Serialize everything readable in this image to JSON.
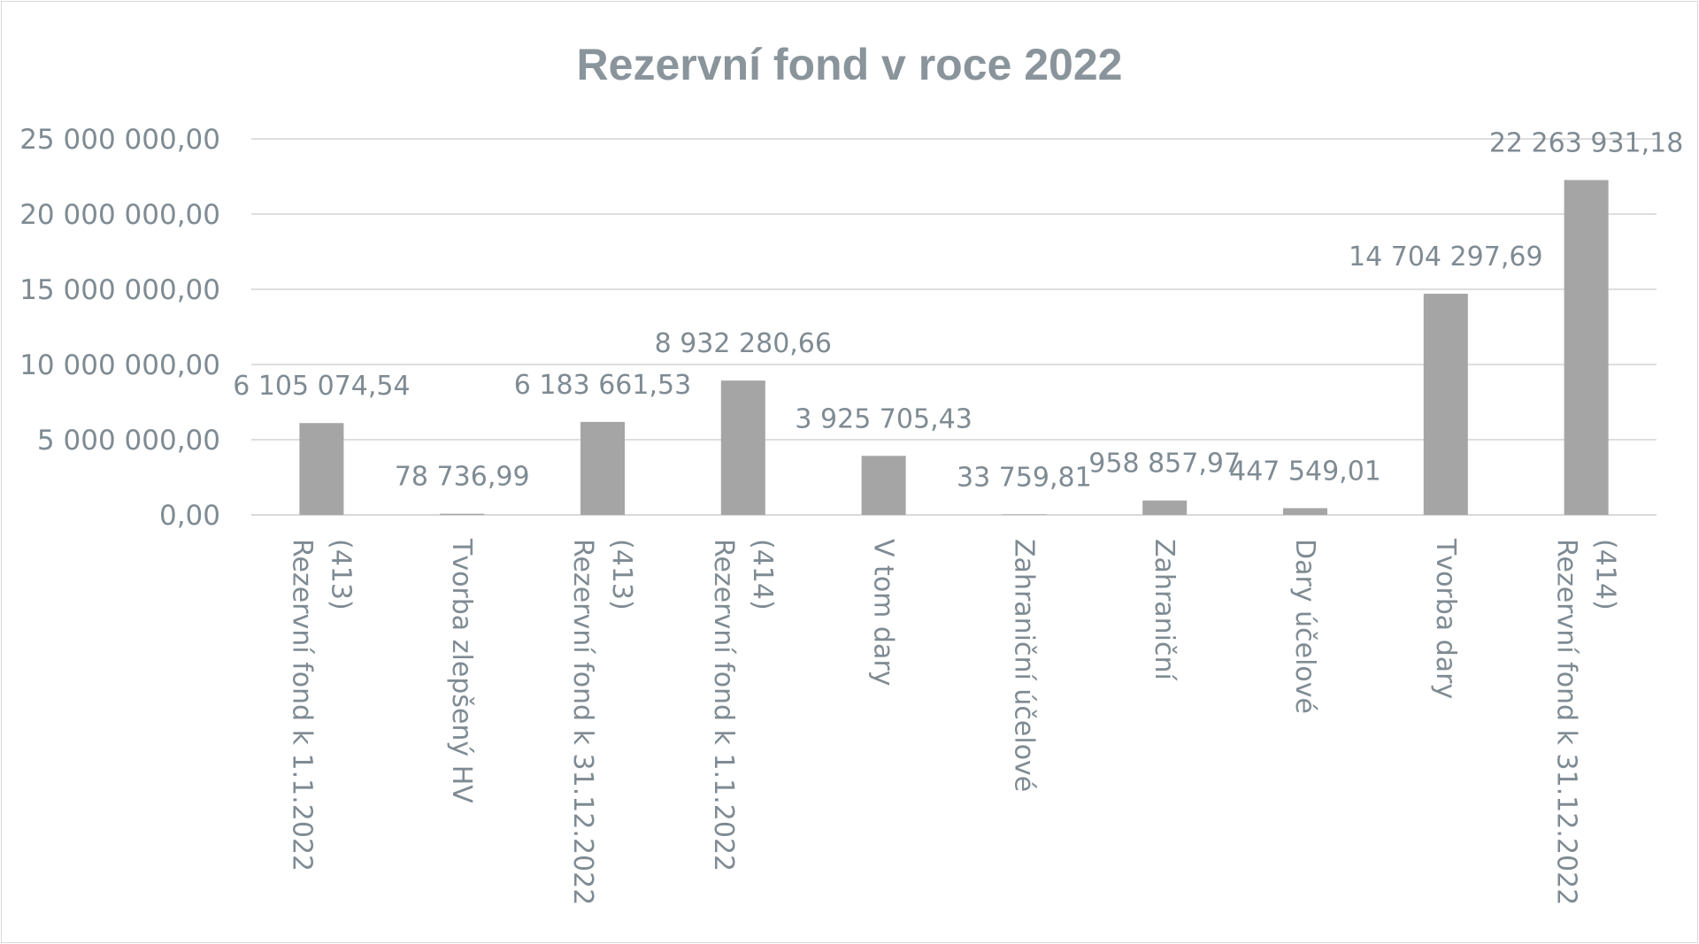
{
  "chart_data": {
    "type": "bar",
    "title": "Rezervní fond v roce 2022",
    "xlabel": "",
    "ylabel": "",
    "ylim": [
      0,
      25000000
    ],
    "yticks": [
      0,
      5000000,
      10000000,
      15000000,
      20000000,
      25000000
    ],
    "ytick_labels": [
      "0,00",
      "5 000 000,00",
      "10 000 000,00",
      "15 000 000,00",
      "20 000 000,00",
      "25 000 000,00"
    ],
    "grid": true,
    "legend": "none",
    "bar_color": "#a5a5a5",
    "categories": [
      [
        "Rezervní fond k 1.1.2022",
        "(413)"
      ],
      [
        "Tvorba zlepšený HV"
      ],
      [
        "Rezervní fond k 31.12.2022",
        "(413)"
      ],
      [
        "Rezervní fond k 1.1.2022",
        "(414)"
      ],
      [
        "V tom dary"
      ],
      [
        "Zahraniční účelové"
      ],
      [
        "Zahraniční"
      ],
      [
        "Dary účelové"
      ],
      [
        "Tvorba dary"
      ],
      [
        "Rezervní fond k 31.12.2022",
        "(414)"
      ]
    ],
    "values": [
      6105074.54,
      78736.99,
      6183661.53,
      8932280.66,
      3925705.43,
      33759.81,
      958857.97,
      447549.01,
      14704297.69,
      22263931.18
    ],
    "value_labels": [
      "6 105 074,54",
      "78 736,99",
      "6 183 661,53",
      "8 932 280,66",
      "3 925 705,43",
      "33 759,81",
      "958 857,97",
      "447 549,01",
      "14 704 297,69",
      "22 263 931,18"
    ]
  }
}
